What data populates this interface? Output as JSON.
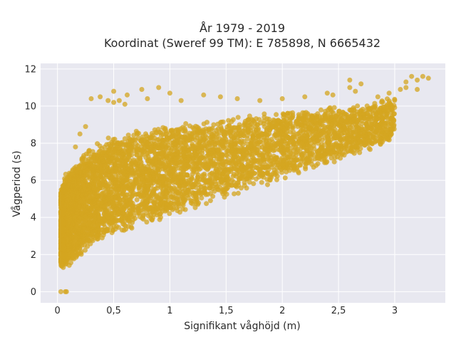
{
  "chart_data": {
    "type": "scatter",
    "title_line1": "År 1979 - 2019",
    "title_line2": "Koordinat (Sweref 99 TM): E 785898, N 6665432",
    "xlabel": "Signifikant våghöjd (m)",
    "ylabel": "Vågperiod (s)",
    "xlim": [
      -0.15,
      3.45
    ],
    "ylim": [
      -0.6,
      12.3
    ],
    "x_ticks": [
      0,
      0.5,
      1,
      1.5,
      2,
      2.5,
      3
    ],
    "x_tick_labels": [
      "0",
      "0,5",
      "1",
      "1,5",
      "2",
      "2,5",
      "3"
    ],
    "y_ticks": [
      0,
      2,
      4,
      6,
      8,
      10,
      12
    ],
    "y_tick_labels": [
      "0",
      "2",
      "4",
      "6",
      "8",
      "10",
      "12"
    ],
    "grid": true,
    "legend": "none",
    "point_color": "#D4A520",
    "plot_background": "#E8E8F0",
    "density_band": {
      "hs": [
        0.03,
        0.05,
        0.1,
        0.2,
        0.3,
        0.5,
        0.75,
        1.0,
        1.25,
        1.5,
        1.75,
        2.0,
        2.25,
        2.5,
        2.75,
        3.0
      ],
      "tp_lower": [
        1.3,
        1.1,
        1.3,
        1.9,
        2.4,
        3.0,
        3.6,
        4.0,
        4.5,
        5.0,
        5.5,
        6.0,
        6.5,
        7.0,
        7.5,
        8.2
      ],
      "tp_upper": [
        5.5,
        6.2,
        6.6,
        7.2,
        7.9,
        8.5,
        8.8,
        9.0,
        9.2,
        9.4,
        9.6,
        9.8,
        9.9,
        10.0,
        10.2,
        10.5
      ]
    },
    "outliers": [
      {
        "x": 0.03,
        "y": 0.0
      },
      {
        "x": 0.07,
        "y": 0.0
      },
      {
        "x": 0.08,
        "y": 0.0
      },
      {
        "x": 0.45,
        "y": 10.3
      },
      {
        "x": 0.5,
        "y": 10.2
      },
      {
        "x": 0.55,
        "y": 10.3
      },
      {
        "x": 0.6,
        "y": 10.1
      },
      {
        "x": 0.3,
        "y": 10.4
      },
      {
        "x": 0.38,
        "y": 10.5
      },
      {
        "x": 0.5,
        "y": 10.8
      },
      {
        "x": 0.62,
        "y": 10.6
      },
      {
        "x": 0.75,
        "y": 10.9
      },
      {
        "x": 0.9,
        "y": 11.0
      },
      {
        "x": 0.8,
        "y": 10.4
      },
      {
        "x": 1.0,
        "y": 10.7
      },
      {
        "x": 1.1,
        "y": 10.3
      },
      {
        "x": 1.3,
        "y": 10.6
      },
      {
        "x": 1.45,
        "y": 10.5
      },
      {
        "x": 1.6,
        "y": 10.4
      },
      {
        "x": 1.8,
        "y": 10.3
      },
      {
        "x": 2.0,
        "y": 10.4
      },
      {
        "x": 2.2,
        "y": 10.5
      },
      {
        "x": 2.4,
        "y": 10.7
      },
      {
        "x": 2.45,
        "y": 10.6
      },
      {
        "x": 2.6,
        "y": 11.0
      },
      {
        "x": 2.65,
        "y": 10.8
      },
      {
        "x": 2.7,
        "y": 11.2
      },
      {
        "x": 2.85,
        "y": 10.5
      },
      {
        "x": 2.95,
        "y": 10.7
      },
      {
        "x": 3.05,
        "y": 10.9
      },
      {
        "x": 3.1,
        "y": 11.3
      },
      {
        "x": 3.15,
        "y": 11.6
      },
      {
        "x": 3.2,
        "y": 11.4
      },
      {
        "x": 3.25,
        "y": 11.6
      },
      {
        "x": 3.3,
        "y": 11.5
      },
      {
        "x": 3.1,
        "y": 11.0
      },
      {
        "x": 3.2,
        "y": 10.9
      },
      {
        "x": 2.6,
        "y": 11.4
      },
      {
        "x": 0.2,
        "y": 8.5
      },
      {
        "x": 0.25,
        "y": 8.9
      },
      {
        "x": 0.16,
        "y": 7.8
      }
    ]
  }
}
